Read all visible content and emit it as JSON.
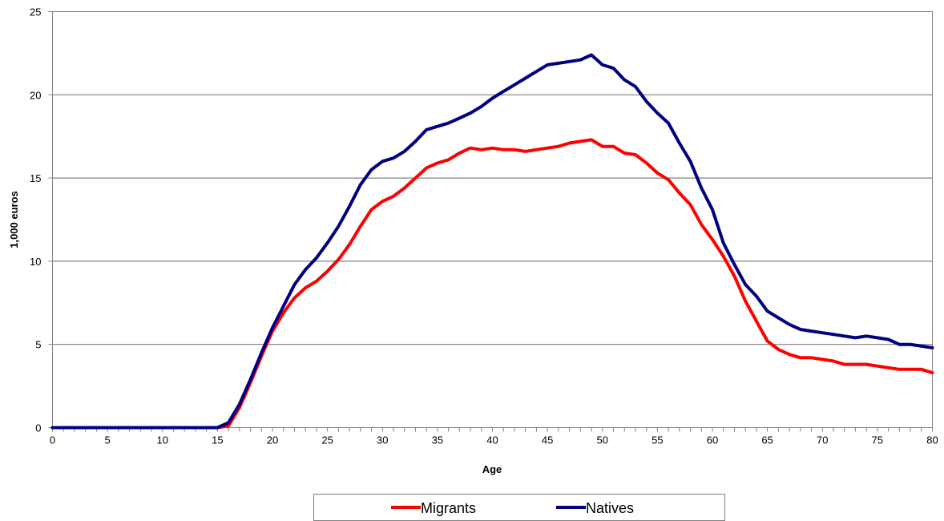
{
  "chart_data": {
    "type": "line",
    "title": "",
    "xlabel": "Age",
    "ylabel": "1,000 euros",
    "xlim": [
      0,
      80
    ],
    "ylim": [
      0,
      25
    ],
    "x_ticks": [
      0,
      5,
      10,
      15,
      20,
      25,
      30,
      35,
      40,
      45,
      50,
      55,
      60,
      65,
      70,
      75,
      80
    ],
    "y_ticks": [
      0,
      5,
      10,
      15,
      20,
      25
    ],
    "grid": "horizontal",
    "legend_position": "bottom",
    "x": [
      0,
      1,
      2,
      3,
      4,
      5,
      6,
      7,
      8,
      9,
      10,
      11,
      12,
      13,
      14,
      15,
      16,
      17,
      18,
      19,
      20,
      21,
      22,
      23,
      24,
      25,
      26,
      27,
      28,
      29,
      30,
      31,
      32,
      33,
      34,
      35,
      36,
      37,
      38,
      39,
      40,
      41,
      42,
      43,
      44,
      45,
      46,
      47,
      48,
      49,
      50,
      51,
      52,
      53,
      54,
      55,
      56,
      57,
      58,
      59,
      60,
      61,
      62,
      63,
      64,
      65,
      66,
      67,
      68,
      69,
      70,
      71,
      72,
      73,
      74,
      75,
      76,
      77,
      78,
      79,
      80
    ],
    "series": [
      {
        "name": "Migrants",
        "color": "#ff0000",
        "values": [
          0,
          0,
          0,
          0,
          0,
          0,
          0,
          0,
          0,
          0,
          0,
          0,
          0,
          0,
          0,
          0,
          0.1,
          1.2,
          2.7,
          4.3,
          5.8,
          6.9,
          7.8,
          8.4,
          8.8,
          9.4,
          10.1,
          11.0,
          12.1,
          13.1,
          13.6,
          13.9,
          14.4,
          15.0,
          15.6,
          15.9,
          16.1,
          16.5,
          16.8,
          16.7,
          16.8,
          16.7,
          16.7,
          16.6,
          16.7,
          16.8,
          16.9,
          17.1,
          17.2,
          17.3,
          16.9,
          16.9,
          16.5,
          16.4,
          15.9,
          15.3,
          14.9,
          14.1,
          13.4,
          12.2,
          11.3,
          10.3,
          9.1,
          7.6,
          6.4,
          5.2,
          4.7,
          4.4,
          4.2,
          4.2,
          4.1,
          4.0,
          3.8,
          3.8,
          3.8,
          3.7,
          3.6,
          3.5,
          3.5,
          3.5,
          3.3
        ]
      },
      {
        "name": "Natives",
        "color": "#000080",
        "values": [
          0,
          0,
          0,
          0,
          0,
          0,
          0,
          0,
          0,
          0,
          0,
          0,
          0,
          0,
          0,
          0,
          0.3,
          1.4,
          2.9,
          4.5,
          6.0,
          7.3,
          8.6,
          9.5,
          10.2,
          11.1,
          12.1,
          13.3,
          14.6,
          15.5,
          16.0,
          16.2,
          16.6,
          17.2,
          17.9,
          18.1,
          18.3,
          18.6,
          18.9,
          19.3,
          19.8,
          20.2,
          20.6,
          21.0,
          21.4,
          21.8,
          21.9,
          22.0,
          22.1,
          22.4,
          21.8,
          21.6,
          20.9,
          20.5,
          19.6,
          18.9,
          18.3,
          17.1,
          16.0,
          14.4,
          13.1,
          11.1,
          9.8,
          8.6,
          7.9,
          7.0,
          6.6,
          6.2,
          5.9,
          5.8,
          5.7,
          5.6,
          5.5,
          5.4,
          5.5,
          5.4,
          5.3,
          5.0,
          5.0,
          4.9,
          4.8
        ]
      }
    ]
  }
}
